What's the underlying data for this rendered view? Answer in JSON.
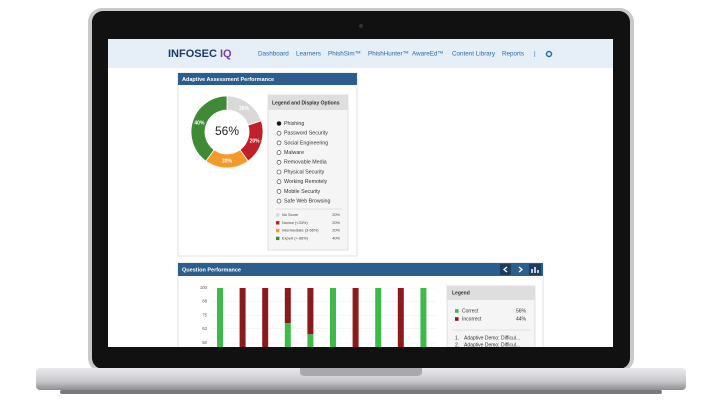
{
  "logo": {
    "brand": "INFOSEC",
    "suffix": "IQ"
  },
  "nav": [
    "Dashboard",
    "Learners",
    "PhishSim™",
    "PhishHunter™",
    "AwareEd™",
    "Content Library",
    "Reports",
    "|"
  ],
  "assessment": {
    "title": "Adaptive Assessment Performance",
    "center_label": "56%",
    "donut": {
      "type": "pie",
      "values": [
        20,
        20,
        20,
        40
      ],
      "value_labels": [
        "20%",
        "20%",
        "20%",
        "40%"
      ],
      "colors": [
        "#d9d9d9",
        "#c0202a",
        "#f39a2b",
        "#3e8a35"
      ]
    },
    "legend_title": "Legend and Display Options",
    "options": [
      "Phishing",
      "Password Security",
      "Social Engineering",
      "Malware",
      "Removable Media",
      "Physical Security",
      "Working Remotely",
      "Mobile Security",
      "Safe Web Browsing"
    ],
    "selected": 0,
    "score_legend": [
      {
        "name": "No Score",
        "pct": "20%",
        "color": "#d9d9d9"
      },
      {
        "name": "Novice (<33%)",
        "pct": "20%",
        "color": "#c0202a"
      },
      {
        "name": "Intermediate (3-66%)",
        "pct": "20%",
        "color": "#f39a2b"
      },
      {
        "name": "Expert (> 66%)",
        "pct": "40%",
        "color": "#3e8a35"
      }
    ]
  },
  "question": {
    "title": "Question Performance",
    "chart": {
      "type": "bar",
      "ylim": [
        0,
        100
      ],
      "yticks": [
        100,
        88,
        75,
        63,
        50
      ],
      "series": [
        {
          "name": "Correct",
          "color": "#3fb94a",
          "values": [
            100,
            0,
            0,
            68,
            58,
            100,
            0,
            100,
            0,
            100
          ]
        },
        {
          "name": "Incorrect",
          "color": "#8b1a1a",
          "values": [
            0,
            100,
            100,
            32,
            42,
            0,
            100,
            0,
            100,
            0
          ]
        }
      ]
    },
    "legend_title": "Legend",
    "legend_pct": [
      "56%",
      "44%"
    ],
    "questions": [
      {
        "num": "1.",
        "text": "Adaptive Demo: Difficul..."
      },
      {
        "num": "2.",
        "text": "Adaptive Demo: Difficul..."
      }
    ]
  }
}
